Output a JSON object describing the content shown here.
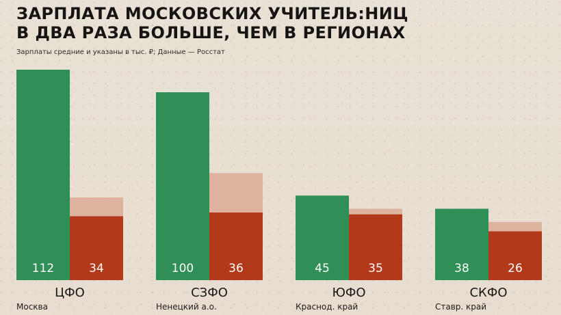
{
  "title_lines": [
    "ЗАРПЛАТА МОСКОВСКИХ УЧИТЕЛЬ:НИЦ",
    "В ДВА РАЗА БОЛЬШЕ, ЧЕМ В РЕГИОНАХ"
  ],
  "subtitle": "Зарплаты средние и указаны в тыс. ₽; Данные — Росстат",
  "colors": {
    "background": "#e8dfd2",
    "green": "#2f8f57",
    "red": "#b2391a",
    "peach": "#ddb29e",
    "text": "#1a1715",
    "value_text": "#ffffff"
  },
  "chart_data": {
    "type": "bar",
    "categories": [
      "ЦФО",
      "СЗФО",
      "ЮФО",
      "СКФО"
    ],
    "region_labels": [
      "Москва",
      "Ненецкий а.о.",
      "Краснод. край",
      "Ставр. край"
    ],
    "series": [
      {
        "values": [
          112,
          100,
          45,
          38
        ],
        "color": "green"
      },
      {
        "values": [
          34,
          36,
          35,
          26
        ],
        "color": "red"
      },
      {
        "values": [
          44,
          57,
          38,
          31
        ],
        "color": "peach"
      }
    ],
    "value_labels": {
      "green": [
        112,
        100,
        45,
        38
      ],
      "red": [
        34,
        36,
        35,
        26
      ]
    },
    "ylim": [
      0,
      112
    ]
  }
}
